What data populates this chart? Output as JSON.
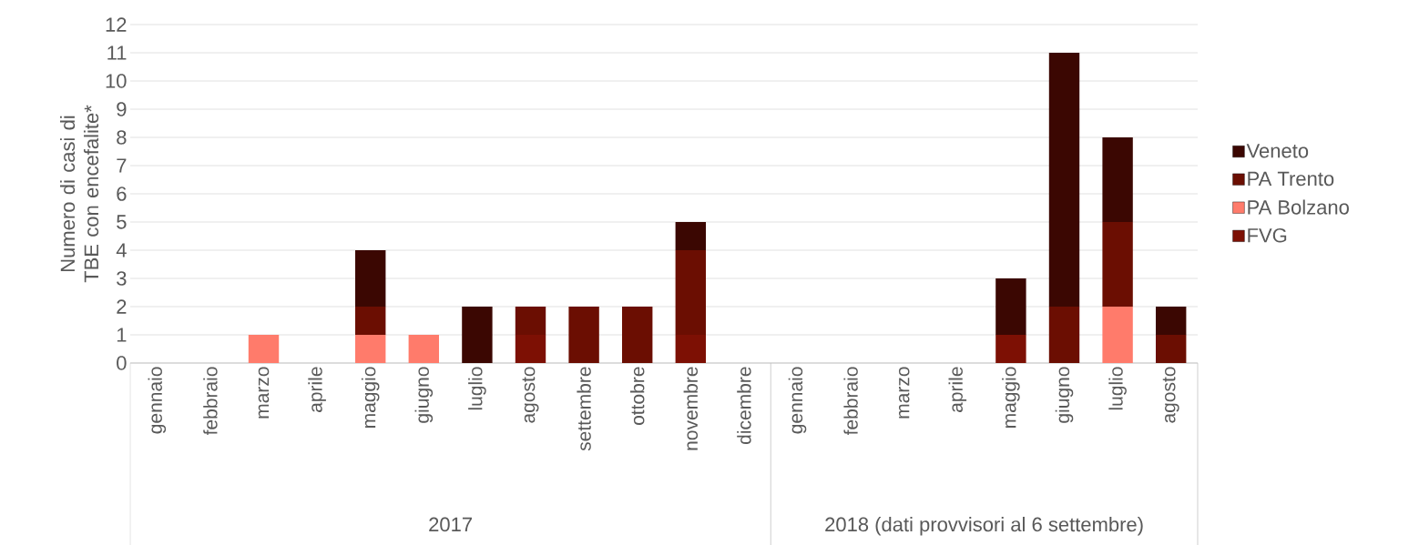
{
  "chart_data": {
    "type": "bar",
    "stacked": true,
    "ylabel": "Numero di casi di TBE con encefalite*",
    "categories": [
      "gennaio",
      "febbraio",
      "marzo",
      "aprile",
      "maggio",
      "giugno",
      "luglio",
      "agosto",
      "settembre",
      "ottobre",
      "novembre",
      "dicembre",
      "gennaio",
      "febbraio",
      "marzo",
      "aprile",
      "maggio",
      "giugno",
      "luglio",
      "agosto"
    ],
    "series": [
      {
        "name": "FVG",
        "color": "#7d1004",
        "values": [
          0,
          0,
          0,
          0,
          0,
          0,
          0,
          1,
          0,
          0,
          1,
          0,
          0,
          0,
          0,
          0,
          1,
          0,
          0,
          0
        ]
      },
      {
        "name": "PA Bolzano",
        "color": "#ff7b6b",
        "values": [
          0,
          0,
          1,
          0,
          1,
          1,
          0,
          0,
          0,
          0,
          0,
          0,
          0,
          0,
          0,
          0,
          0,
          0,
          2,
          0
        ]
      },
      {
        "name": "PA Trento",
        "color": "#6b0e02",
        "values": [
          0,
          0,
          0,
          0,
          1,
          0,
          0,
          1,
          2,
          2,
          3,
          0,
          0,
          0,
          0,
          0,
          0,
          2,
          3,
          1
        ]
      },
      {
        "name": "Veneto",
        "color": "#3b0702",
        "values": [
          0,
          0,
          0,
          0,
          2,
          0,
          2,
          0,
          0,
          0,
          1,
          0,
          0,
          0,
          0,
          0,
          2,
          9,
          3,
          1
        ]
      }
    ],
    "ylim": [
      0,
      12
    ],
    "yticks": [
      0,
      1,
      2,
      3,
      4,
      5,
      6,
      7,
      8,
      9,
      10,
      11,
      12
    ],
    "grid": "y",
    "legend": "right",
    "annotations": [
      "2017",
      "2018 (dati provvisori al 6 settembre)"
    ]
  }
}
